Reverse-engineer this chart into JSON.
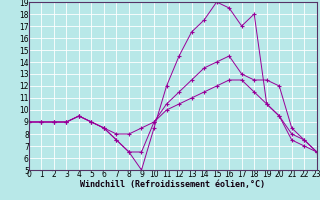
{
  "xlabel": "Windchill (Refroidissement éolien,°C)",
  "bg_color": "#b8e8e8",
  "line_color": "#990099",
  "grid_color": "#ffffff",
  "xlim": [
    0,
    23
  ],
  "ylim": [
    5,
    19
  ],
  "yticks": [
    5,
    6,
    7,
    8,
    9,
    10,
    11,
    12,
    13,
    14,
    15,
    16,
    17,
    18,
    19
  ],
  "xticks": [
    0,
    1,
    2,
    3,
    4,
    5,
    6,
    7,
    8,
    9,
    10,
    11,
    12,
    13,
    14,
    15,
    16,
    17,
    18,
    19,
    20,
    21,
    22,
    23
  ],
  "lines": [
    {
      "x": [
        0,
        1,
        2,
        3,
        4,
        5,
        6,
        7,
        8,
        9,
        10,
        11,
        12,
        13,
        14,
        15,
        16,
        17,
        18,
        19,
        20,
        21,
        22,
        23
      ],
      "y": [
        9.0,
        9.0,
        9.0,
        9.0,
        9.5,
        9.0,
        8.5,
        7.5,
        6.5,
        5.0,
        8.5,
        12.0,
        14.5,
        16.5,
        17.5,
        19.0,
        18.5,
        17.0,
        18.0,
        10.5,
        9.5,
        7.5,
        7.0,
        6.5
      ]
    },
    {
      "x": [
        0,
        1,
        2,
        3,
        4,
        5,
        6,
        7,
        8,
        9,
        10,
        11,
        12,
        13,
        14,
        15,
        16,
        17,
        18,
        19,
        20,
        21,
        22,
        23
      ],
      "y": [
        9.0,
        9.0,
        9.0,
        9.0,
        9.5,
        9.0,
        8.5,
        7.5,
        6.5,
        6.5,
        9.0,
        10.5,
        11.5,
        12.5,
        13.5,
        14.0,
        14.5,
        13.0,
        12.5,
        12.5,
        12.0,
        8.5,
        7.5,
        6.5
      ]
    },
    {
      "x": [
        0,
        1,
        2,
        3,
        4,
        5,
        6,
        7,
        8,
        9,
        10,
        11,
        12,
        13,
        14,
        15,
        16,
        17,
        18,
        19,
        20,
        21,
        22,
        23
      ],
      "y": [
        9.0,
        9.0,
        9.0,
        9.0,
        9.5,
        9.0,
        8.5,
        8.0,
        8.0,
        8.5,
        9.0,
        10.0,
        10.5,
        11.0,
        11.5,
        12.0,
        12.5,
        12.5,
        11.5,
        10.5,
        9.5,
        8.0,
        7.5,
        6.5
      ]
    }
  ],
  "tick_fontsize": 5.5,
  "xlabel_fontsize": 6.0
}
